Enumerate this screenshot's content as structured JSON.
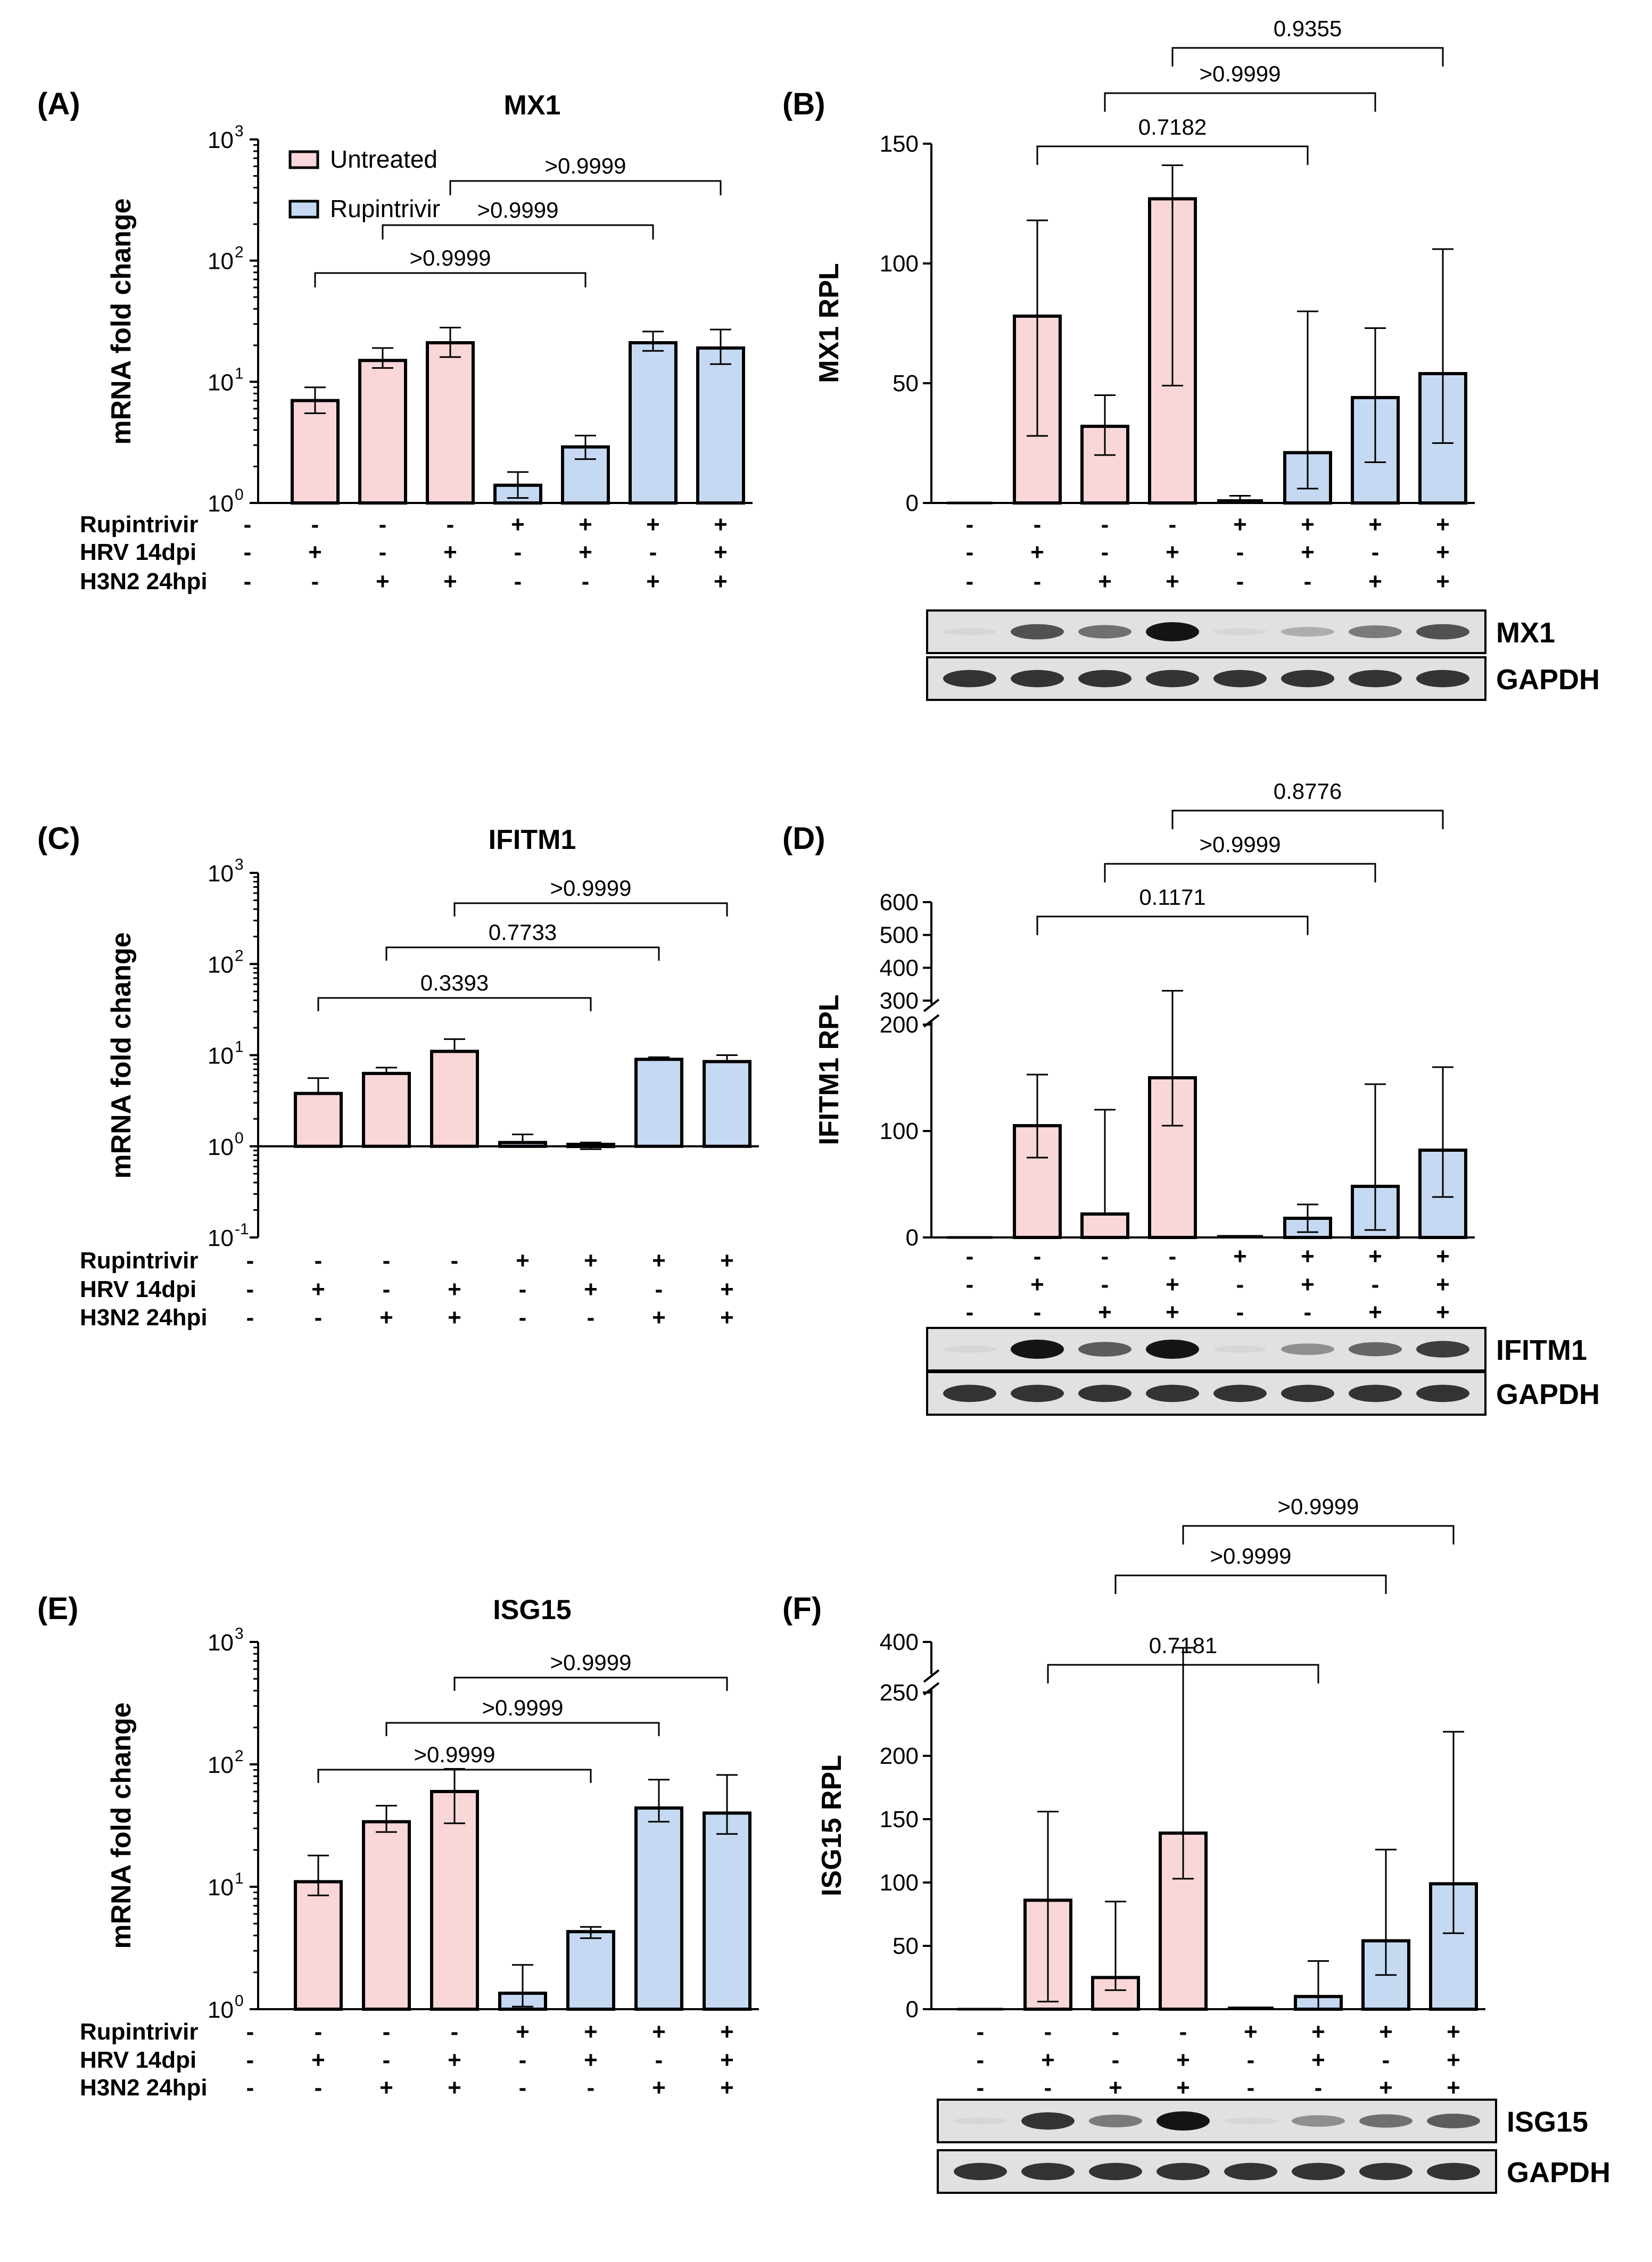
{
  "colors": {
    "untreated": "#f9d6d8",
    "rupintrivir": "#c6d9f2",
    "stroke": "#000000",
    "blot_bg": "#e1e1e1",
    "band": "#141414"
  },
  "legend": {
    "untreated": "Untreated",
    "rupintrivir": "Rupintrivir"
  },
  "row_labels": [
    "Rupintrivir",
    "HRV 14dpi",
    "H3N2 24hpi"
  ],
  "conditions": [
    [
      "-",
      "-",
      "-",
      "-",
      "+",
      "+",
      "+",
      "+"
    ],
    [
      "-",
      "+",
      "-",
      "+",
      "-",
      "+",
      "-",
      "+"
    ],
    [
      "-",
      "-",
      "+",
      "+",
      "-",
      "-",
      "+",
      "+"
    ]
  ],
  "blots": {
    "MX1": {
      "label": "MX1",
      "intensity": [
        0.05,
        0.7,
        0.55,
        1.0,
        0.05,
        0.25,
        0.5,
        0.7
      ]
    },
    "IFITM1": {
      "label": "IFITM1",
      "intensity": [
        0.05,
        1.0,
        0.65,
        1.0,
        0.05,
        0.4,
        0.6,
        0.8
      ]
    },
    "ISG15": {
      "label": "ISG15",
      "intensity": [
        0.05,
        0.85,
        0.5,
        1.0,
        0.05,
        0.4,
        0.55,
        0.65
      ]
    },
    "GAPDH": {
      "label": "GAPDH",
      "intensity": [
        0.85,
        0.85,
        0.85,
        0.85,
        0.85,
        0.85,
        0.85,
        0.85
      ]
    }
  },
  "chart_data": [
    {
      "panel": "(A)",
      "type": "bar",
      "title": "MX1",
      "ylabel": "mRNA fold change",
      "yscale": "log",
      "ylim": [
        1,
        1000
      ],
      "yticks": [
        {
          "base": "10",
          "exp": "0"
        },
        {
          "base": "10",
          "exp": "1"
        },
        {
          "base": "10",
          "exp": "2"
        },
        {
          "base": "10",
          "exp": "3"
        }
      ],
      "values": [
        null,
        7,
        15,
        21,
        1.4,
        2.9,
        21,
        19
      ],
      "err_high": [
        null,
        9,
        19,
        28,
        1.8,
        3.6,
        26,
        27
      ],
      "err_low": [
        null,
        5.5,
        13,
        16,
        1.1,
        2.3,
        18,
        14
      ],
      "comparisons": [
        {
          "from": 1,
          "to": 5,
          "label": ">0.9999"
        },
        {
          "from": 2,
          "to": 6,
          "label": ">0.9999"
        },
        {
          "from": 3,
          "to": 7,
          "label": ">0.9999"
        }
      ]
    },
    {
      "panel": "(B)",
      "type": "bar",
      "title": "",
      "ylabel": "MX1 RPL",
      "yscale": "linear",
      "ylim": [
        0,
        150
      ],
      "yticks": [
        0,
        50,
        100,
        150
      ],
      "values": [
        0,
        78,
        32,
        127,
        1,
        21,
        44,
        54
      ],
      "err_high": [
        null,
        118,
        45,
        141,
        3,
        80,
        73,
        106
      ],
      "err_low": [
        null,
        28,
        20,
        49,
        0,
        6,
        17,
        25
      ],
      "comparisons": [
        {
          "from": 1,
          "to": 5,
          "label": "0.7182"
        },
        {
          "from": 2,
          "to": 6,
          "label": ">0.9999"
        },
        {
          "from": 3,
          "to": 7,
          "label": "0.9355"
        }
      ]
    },
    {
      "panel": "(C)",
      "type": "bar",
      "title": "IFITM1",
      "ylabel": "mRNA fold change",
      "yscale": "log",
      "ylim": [
        0.1,
        1000
      ],
      "yticks": [
        {
          "base": "10",
          "exp": "-1"
        },
        {
          "base": "10",
          "exp": "0"
        },
        {
          "base": "10",
          "exp": "1"
        },
        {
          "base": "10",
          "exp": "2"
        },
        {
          "base": "10",
          "exp": "3"
        }
      ],
      "values": [
        null,
        3.8,
        6.3,
        11,
        1.1,
        1.05,
        9,
        8.5
      ],
      "err_high": [
        null,
        5.6,
        7.3,
        15,
        1.35,
        1.1,
        9.5,
        10
      ],
      "err_low": [
        null,
        null,
        null,
        null,
        null,
        0.93,
        null,
        null
      ],
      "comparisons": [
        {
          "from": 1,
          "to": 5,
          "label": "0.3393"
        },
        {
          "from": 2,
          "to": 6,
          "label": "0.7733"
        },
        {
          "from": 3,
          "to": 7,
          "label": ">0.9999"
        }
      ]
    },
    {
      "panel": "(D)",
      "type": "bar",
      "title": "",
      "ylabel": "IFITM1 RPL",
      "yscale": "broken",
      "lower_range": [
        0,
        200
      ],
      "upper_range": [
        300,
        600
      ],
      "yticks": [
        0,
        100,
        200,
        300,
        400,
        500,
        600
      ],
      "values": [
        0,
        105,
        22,
        150,
        1,
        18,
        48,
        82
      ],
      "err_high": [
        null,
        153,
        120,
        330,
        null,
        31,
        144,
        160
      ],
      "err_low": [
        null,
        75,
        null,
        105,
        null,
        5,
        7,
        38
      ],
      "comparisons": [
        {
          "from": 1,
          "to": 5,
          "label": "0.1171"
        },
        {
          "from": 2,
          "to": 6,
          "label": ">0.9999"
        },
        {
          "from": 3,
          "to": 7,
          "label": "0.8776"
        }
      ]
    },
    {
      "panel": "(E)",
      "type": "bar",
      "title": "ISG15",
      "ylabel": "mRNA fold change",
      "yscale": "log",
      "ylim": [
        1,
        1000
      ],
      "yticks": [
        {
          "base": "10",
          "exp": "0"
        },
        {
          "base": "10",
          "exp": "1"
        },
        {
          "base": "10",
          "exp": "2"
        },
        {
          "base": "10",
          "exp": "3"
        }
      ],
      "values": [
        null,
        11,
        34,
        60,
        1.35,
        4.3,
        44,
        40
      ],
      "err_high": [
        null,
        18,
        46,
        92,
        2.3,
        4.7,
        75,
        82
      ],
      "err_low": [
        null,
        8.5,
        28,
        33,
        1.05,
        3.8,
        34,
        27
      ],
      "comparisons": [
        {
          "from": 1,
          "to": 5,
          "label": ">0.9999"
        },
        {
          "from": 2,
          "to": 6,
          "label": ">0.9999"
        },
        {
          "from": 3,
          "to": 7,
          "label": ">0.9999"
        }
      ]
    },
    {
      "panel": "(F)",
      "type": "bar",
      "title": "",
      "ylabel": "ISG15 RPL",
      "yscale": "broken",
      "lower_range": [
        0,
        250
      ],
      "upper_range": [
        350,
        400
      ],
      "yticks": [
        0,
        50,
        100,
        150,
        200,
        250,
        400
      ],
      "values": [
        0,
        86,
        25,
        139,
        1,
        10,
        54,
        99
      ],
      "err_high": [
        null,
        156,
        85,
        390,
        null,
        38,
        126,
        219
      ],
      "err_low": [
        null,
        6,
        15,
        103,
        null,
        0,
        27,
        60
      ],
      "comparisons": [
        {
          "from": 1,
          "to": 5,
          "label": "0.7181"
        },
        {
          "from": 2,
          "to": 6,
          "label": ">0.9999"
        },
        {
          "from": 3,
          "to": 7,
          "label": ">0.9999"
        }
      ]
    }
  ]
}
